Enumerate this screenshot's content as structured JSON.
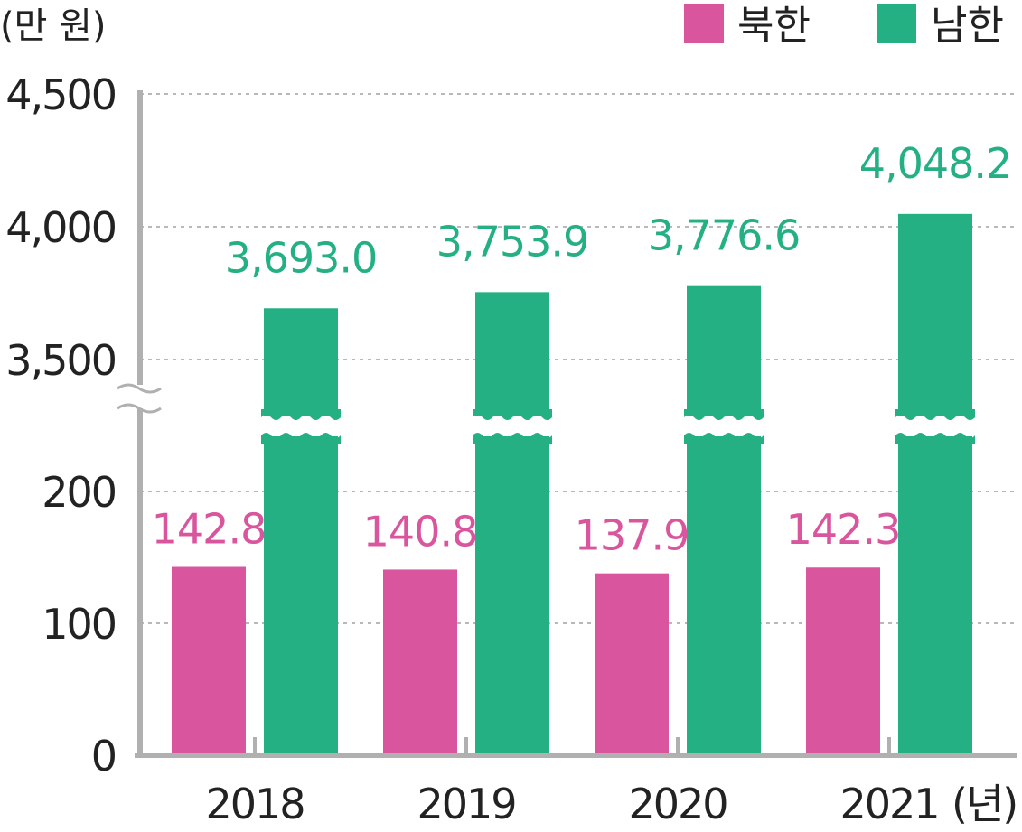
{
  "chart_data": {
    "type": "bar",
    "y_unit_label": "(만 원)",
    "x_unit_label": "(년)",
    "categories": [
      "2018",
      "2019",
      "2020",
      "2021"
    ],
    "series": [
      {
        "name": "북한",
        "color": "#d9559e",
        "values": [
          142.8,
          140.8,
          137.9,
          142.3
        ],
        "labels": [
          "142.8",
          "140.8",
          "137.9",
          "142.3"
        ]
      },
      {
        "name": "남한",
        "color": "#25b084",
        "values": [
          3693.0,
          3753.9,
          3776.6,
          4048.2
        ],
        "labels": [
          "3,693.0",
          "3,753.9",
          "3,776.6",
          "4,048.2"
        ]
      }
    ],
    "y_axis_lower": {
      "range": [
        0,
        250
      ],
      "ticks": [
        0,
        100,
        200
      ],
      "tick_labels": [
        "0",
        "100",
        "200"
      ]
    },
    "y_axis_upper": {
      "range": [
        3300,
        4500
      ],
      "ticks": [
        3500,
        4000,
        4500
      ],
      "tick_labels": [
        "3,500",
        "4,000",
        "4,500"
      ]
    },
    "axis_break": true,
    "grid": true,
    "legend_position": "top-right"
  }
}
